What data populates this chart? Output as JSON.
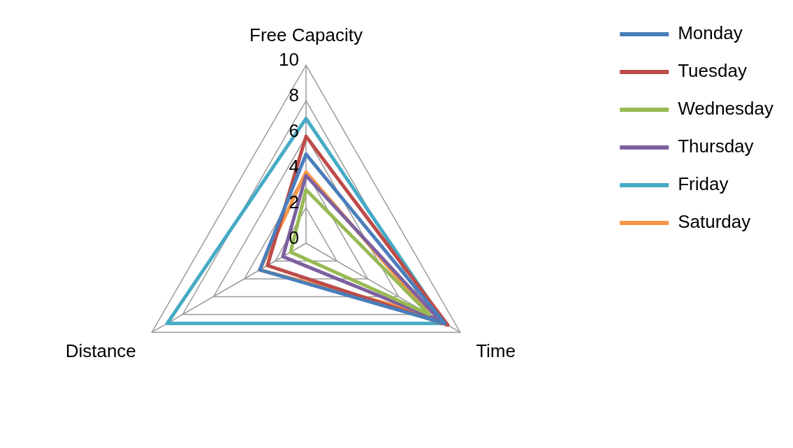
{
  "chart_data": {
    "type": "radar",
    "categories": [
      "Free Capacity",
      "Time",
      "Distance"
    ],
    "series": [
      {
        "name": "Monday",
        "color": "#4a7ebb",
        "values": [
          5,
          9,
          3
        ]
      },
      {
        "name": "Tuesday",
        "color": "#be4b48",
        "values": [
          6,
          9.2,
          2.5
        ]
      },
      {
        "name": "Wednesday",
        "color": "#98b954",
        "values": [
          3,
          8,
          1
        ]
      },
      {
        "name": "Thursday",
        "color": "#7d60a0",
        "values": [
          3.8,
          8.7,
          1.5
        ]
      },
      {
        "name": "Friday",
        "color": "#46aac5",
        "values": [
          7,
          9,
          9
        ]
      },
      {
        "name": "Saturday",
        "color": "#f79646",
        "values": [
          4,
          8,
          3
        ]
      }
    ],
    "ylim": [
      0,
      10
    ],
    "yticks": [
      0,
      2,
      4,
      6,
      8,
      10
    ],
    "grid": true,
    "legend": "right",
    "marker": "none",
    "line_style": "solid"
  }
}
